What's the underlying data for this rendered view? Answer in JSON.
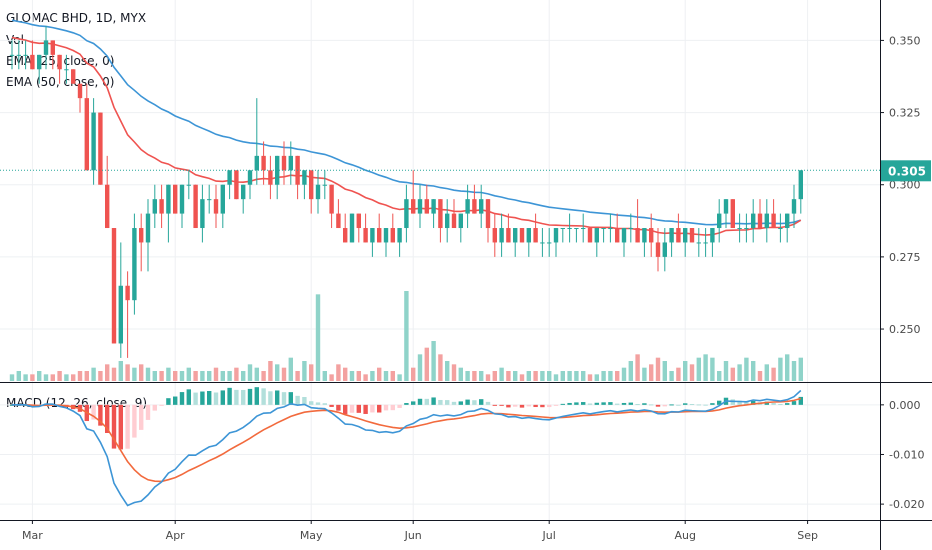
{
  "legend": {
    "symbol": "GLOMAC BHD, 1D, MYX",
    "volume": "Vol",
    "ema25": "EMA (25, close, 0)",
    "ema50": "EMA (50, close, 0)",
    "macd": "MACD (12, 26, close, 9)"
  },
  "colors": {
    "up": "#26a69a",
    "down": "#ef5350",
    "volUp": "#8fd3c9",
    "volDown": "#f3a1a0",
    "ema25": "#ef5350",
    "ema50": "#3d95d6",
    "macdLine": "#3d95d6",
    "signalLine": "#f26a3d",
    "histUpStrong": "#26a69a",
    "histUpWeak": "#b2dfdb",
    "histDownStrong": "#ef5350",
    "histDownWeak": "#ffcdd2",
    "lastPrice": "#26a69a"
  },
  "last_price_label": "0.305",
  "chart_data": [
    {
      "type": "candlestick",
      "title": "GLOMAC BHD, 1D, MYX",
      "x_ticks": [
        "Mar",
        "Apr",
        "May",
        "Jun",
        "Jul",
        "Aug",
        "Sep"
      ],
      "x_tick_index": [
        3,
        24,
        44,
        59,
        79,
        99,
        117
      ],
      "y_ticks": [
        "0.350",
        "0.325",
        "0.300",
        "0.275",
        "0.250"
      ],
      "y_tick_values": [
        0.35,
        0.325,
        0.3,
        0.275,
        0.25
      ],
      "ylim": [
        0.232,
        0.364
      ],
      "last_price": 0.305,
      "candles": [
        [
          0.345,
          0.35,
          0.34,
          0.345
        ],
        [
          0.345,
          0.35,
          0.34,
          0.345
        ],
        [
          0.345,
          0.35,
          0.34,
          0.345
        ],
        [
          0.345,
          0.35,
          0.34,
          0.34
        ],
        [
          0.34,
          0.345,
          0.335,
          0.345
        ],
        [
          0.345,
          0.355,
          0.34,
          0.35
        ],
        [
          0.35,
          0.35,
          0.34,
          0.345
        ],
        [
          0.345,
          0.345,
          0.335,
          0.34
        ],
        [
          0.34,
          0.345,
          0.335,
          0.34
        ],
        [
          0.34,
          0.34,
          0.335,
          0.335
        ],
        [
          0.335,
          0.335,
          0.325,
          0.33
        ],
        [
          0.33,
          0.335,
          0.305,
          0.305
        ],
        [
          0.305,
          0.33,
          0.3,
          0.325
        ],
        [
          0.325,
          0.325,
          0.3,
          0.3
        ],
        [
          0.3,
          0.31,
          0.285,
          0.285
        ],
        [
          0.285,
          0.285,
          0.245,
          0.245
        ],
        [
          0.245,
          0.28,
          0.24,
          0.265
        ],
        [
          0.265,
          0.27,
          0.24,
          0.26
        ],
        [
          0.26,
          0.29,
          0.255,
          0.285
        ],
        [
          0.285,
          0.29,
          0.27,
          0.28
        ],
        [
          0.28,
          0.295,
          0.27,
          0.29
        ],
        [
          0.29,
          0.3,
          0.285,
          0.295
        ],
        [
          0.295,
          0.3,
          0.285,
          0.29
        ],
        [
          0.29,
          0.3,
          0.28,
          0.3
        ],
        [
          0.3,
          0.3,
          0.29,
          0.29
        ],
        [
          0.29,
          0.3,
          0.285,
          0.3
        ],
        [
          0.3,
          0.305,
          0.295,
          0.3
        ],
        [
          0.3,
          0.3,
          0.285,
          0.285
        ],
        [
          0.285,
          0.3,
          0.28,
          0.295
        ],
        [
          0.295,
          0.3,
          0.29,
          0.295
        ],
        [
          0.295,
          0.3,
          0.285,
          0.29
        ],
        [
          0.29,
          0.3,
          0.285,
          0.3
        ],
        [
          0.3,
          0.305,
          0.295,
          0.305
        ],
        [
          0.305,
          0.305,
          0.295,
          0.295
        ],
        [
          0.295,
          0.3,
          0.29,
          0.3
        ],
        [
          0.3,
          0.305,
          0.295,
          0.305
        ],
        [
          0.305,
          0.33,
          0.3,
          0.31
        ],
        [
          0.31,
          0.315,
          0.3,
          0.305
        ],
        [
          0.305,
          0.31,
          0.295,
          0.3
        ],
        [
          0.3,
          0.31,
          0.295,
          0.31
        ],
        [
          0.31,
          0.315,
          0.3,
          0.305
        ],
        [
          0.305,
          0.315,
          0.3,
          0.31
        ],
        [
          0.31,
          0.31,
          0.295,
          0.3
        ],
        [
          0.3,
          0.305,
          0.295,
          0.305
        ],
        [
          0.305,
          0.305,
          0.29,
          0.295
        ],
        [
          0.295,
          0.305,
          0.29,
          0.3
        ],
        [
          0.3,
          0.305,
          0.295,
          0.3
        ],
        [
          0.3,
          0.3,
          0.285,
          0.29
        ],
        [
          0.29,
          0.295,
          0.285,
          0.285
        ],
        [
          0.285,
          0.29,
          0.28,
          0.28
        ],
        [
          0.28,
          0.29,
          0.28,
          0.29
        ],
        [
          0.29,
          0.29,
          0.28,
          0.285
        ],
        [
          0.285,
          0.29,
          0.28,
          0.28
        ],
        [
          0.28,
          0.285,
          0.275,
          0.285
        ],
        [
          0.285,
          0.29,
          0.28,
          0.28
        ],
        [
          0.28,
          0.285,
          0.275,
          0.285
        ],
        [
          0.285,
          0.29,
          0.28,
          0.28
        ],
        [
          0.28,
          0.285,
          0.275,
          0.285
        ],
        [
          0.285,
          0.3,
          0.28,
          0.295
        ],
        [
          0.295,
          0.305,
          0.29,
          0.29
        ],
        [
          0.29,
          0.3,
          0.285,
          0.295
        ],
        [
          0.295,
          0.3,
          0.29,
          0.29
        ],
        [
          0.29,
          0.295,
          0.285,
          0.295
        ],
        [
          0.295,
          0.295,
          0.28,
          0.285
        ],
        [
          0.285,
          0.295,
          0.28,
          0.29
        ],
        [
          0.29,
          0.295,
          0.285,
          0.285
        ],
        [
          0.285,
          0.29,
          0.28,
          0.29
        ],
        [
          0.29,
          0.3,
          0.285,
          0.295
        ],
        [
          0.295,
          0.3,
          0.29,
          0.29
        ],
        [
          0.29,
          0.3,
          0.285,
          0.295
        ],
        [
          0.295,
          0.295,
          0.28,
          0.285
        ],
        [
          0.285,
          0.29,
          0.275,
          0.28
        ],
        [
          0.28,
          0.29,
          0.275,
          0.285
        ],
        [
          0.285,
          0.29,
          0.28,
          0.28
        ],
        [
          0.28,
          0.285,
          0.275,
          0.285
        ],
        [
          0.285,
          0.285,
          0.28,
          0.28
        ],
        [
          0.28,
          0.285,
          0.275,
          0.285
        ],
        [
          0.285,
          0.29,
          0.28,
          0.28
        ],
        [
          0.28,
          0.285,
          0.275,
          0.28
        ],
        [
          0.28,
          0.285,
          0.275,
          0.28
        ],
        [
          0.28,
          0.285,
          0.275,
          0.285
        ],
        [
          0.285,
          0.285,
          0.28,
          0.285
        ],
        [
          0.285,
          0.29,
          0.28,
          0.285
        ],
        [
          0.285,
          0.285,
          0.28,
          0.285
        ],
        [
          0.285,
          0.29,
          0.28,
          0.285
        ],
        [
          0.285,
          0.285,
          0.28,
          0.28
        ],
        [
          0.28,
          0.285,
          0.275,
          0.285
        ],
        [
          0.285,
          0.285,
          0.28,
          0.285
        ],
        [
          0.285,
          0.29,
          0.28,
          0.285
        ],
        [
          0.285,
          0.29,
          0.28,
          0.28
        ],
        [
          0.28,
          0.285,
          0.275,
          0.285
        ],
        [
          0.285,
          0.29,
          0.28,
          0.285
        ],
        [
          0.285,
          0.295,
          0.28,
          0.28
        ],
        [
          0.28,
          0.285,
          0.275,
          0.285
        ],
        [
          0.285,
          0.29,
          0.275,
          0.28
        ],
        [
          0.28,
          0.285,
          0.27,
          0.275
        ],
        [
          0.275,
          0.285,
          0.27,
          0.28
        ],
        [
          0.28,
          0.285,
          0.275,
          0.285
        ],
        [
          0.285,
          0.29,
          0.28,
          0.28
        ],
        [
          0.28,
          0.285,
          0.275,
          0.285
        ],
        [
          0.285,
          0.285,
          0.28,
          0.28
        ],
        [
          0.28,
          0.285,
          0.275,
          0.28
        ],
        [
          0.28,
          0.285,
          0.275,
          0.28
        ],
        [
          0.28,
          0.285,
          0.275,
          0.285
        ],
        [
          0.285,
          0.295,
          0.28,
          0.29
        ],
        [
          0.29,
          0.295,
          0.285,
          0.295
        ],
        [
          0.295,
          0.295,
          0.285,
          0.285
        ],
        [
          0.285,
          0.29,
          0.28,
          0.285
        ],
        [
          0.285,
          0.29,
          0.28,
          0.285
        ],
        [
          0.285,
          0.295,
          0.28,
          0.29
        ],
        [
          0.29,
          0.295,
          0.285,
          0.285
        ],
        [
          0.285,
          0.295,
          0.28,
          0.29
        ],
        [
          0.29,
          0.295,
          0.285,
          0.285
        ],
        [
          0.285,
          0.29,
          0.28,
          0.285
        ],
        [
          0.285,
          0.29,
          0.28,
          0.29
        ],
        [
          0.29,
          0.3,
          0.285,
          0.295
        ],
        [
          0.295,
          0.305,
          0.29,
          0.305
        ]
      ],
      "volume": [
        2,
        3,
        2,
        2,
        3,
        2,
        2,
        3,
        2,
        2,
        3,
        3,
        4,
        3,
        5,
        4,
        6,
        5,
        4,
        5,
        4,
        3,
        3,
        4,
        3,
        3,
        4,
        3,
        3,
        3,
        4,
        3,
        3,
        4,
        3,
        5,
        4,
        3,
        6,
        5,
        4,
        7,
        3,
        6,
        5,
        26,
        3,
        2,
        5,
        4,
        3,
        3,
        2,
        3,
        4,
        3,
        3,
        2,
        27,
        4,
        8,
        10,
        12,
        8,
        6,
        5,
        4,
        3,
        3,
        3,
        2,
        3,
        4,
        3,
        3,
        2,
        3,
        3,
        3,
        3,
        2,
        3,
        3,
        3,
        3,
        2,
        2,
        3,
        3,
        3,
        4,
        6,
        8,
        4,
        5,
        7,
        6,
        3,
        4,
        6,
        5,
        7,
        8,
        7,
        3,
        6,
        4,
        5,
        7,
        6,
        3,
        5,
        4,
        7,
        8,
        6,
        7
      ]
    },
    {
      "type": "line",
      "title": "MACD (12, 26, close, 9)",
      "y_ticks": [
        "0.000",
        "-0.010",
        "-0.020"
      ],
      "y_tick_values": [
        0.0,
        -0.01,
        -0.02
      ],
      "ylim": [
        -0.0232,
        0.0042
      ],
      "series": [
        {
          "name": "MACD"
        },
        {
          "name": "Signal"
        },
        {
          "name": "Histogram"
        }
      ]
    }
  ]
}
